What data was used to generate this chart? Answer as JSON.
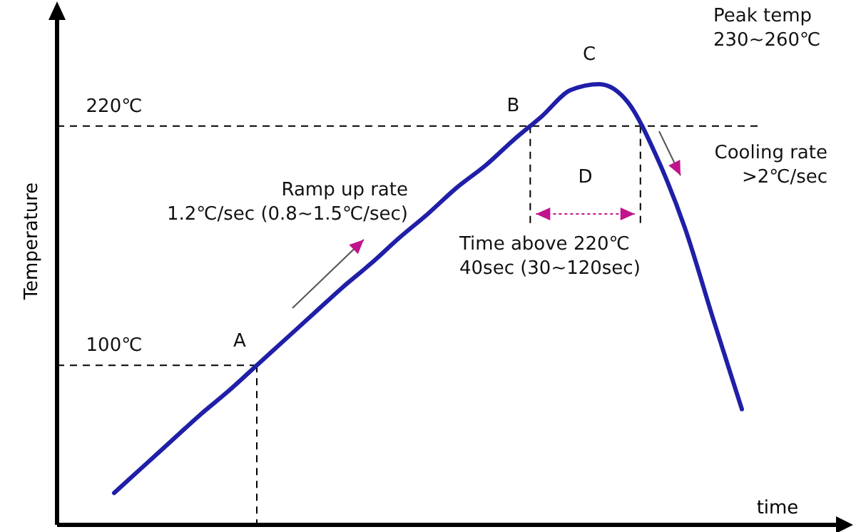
{
  "chart_data": {
    "type": "line",
    "xlabel": "time",
    "ylabel": "Temperature",
    "categories": [
      null,
      null,
      null,
      null,
      null,
      null,
      null,
      null,
      null,
      null,
      null,
      null,
      null,
      null,
      null,
      null,
      null,
      null,
      null,
      null,
      null,
      null,
      null,
      null,
      null,
      null,
      null,
      null
    ],
    "series": [
      {
        "color": "#1f1fa8",
        "values": [
          null,
          null,
          36,
          49,
          62,
          75,
          87,
          100,
          113,
          126,
          139,
          151,
          164,
          176,
          189,
          200,
          213,
          225,
          238,
          241,
          232,
          205,
          169,
          123,
          78,
          null,
          null,
          null
        ]
      }
    ],
    "ylim": [
      20,
      276
    ],
    "yticks": [
      {
        "value": 100,
        "label": "100℃"
      },
      {
        "value": 220,
        "label": "220℃"
      }
    ],
    "tick_labels": "y",
    "grid": false,
    "marker": "none",
    "line_style": "solid",
    "ref_lines": [
      {
        "axis": "y",
        "value": 220,
        "color": "#000000",
        "line_style": "dashed"
      },
      {
        "axis": "y",
        "value": 100,
        "color": "#000000",
        "line_style": "dashed"
      }
    ],
    "annotations": [
      "Peak temp\n230~260℃",
      "C",
      "B",
      "A",
      "D",
      "Ramp up rate\n1.2℃/sec (0.8~1.5℃/sec)",
      "Time above 220℃\n40sec (30~120sec)",
      "Cooling rate\n>2℃/sec"
    ]
  }
}
